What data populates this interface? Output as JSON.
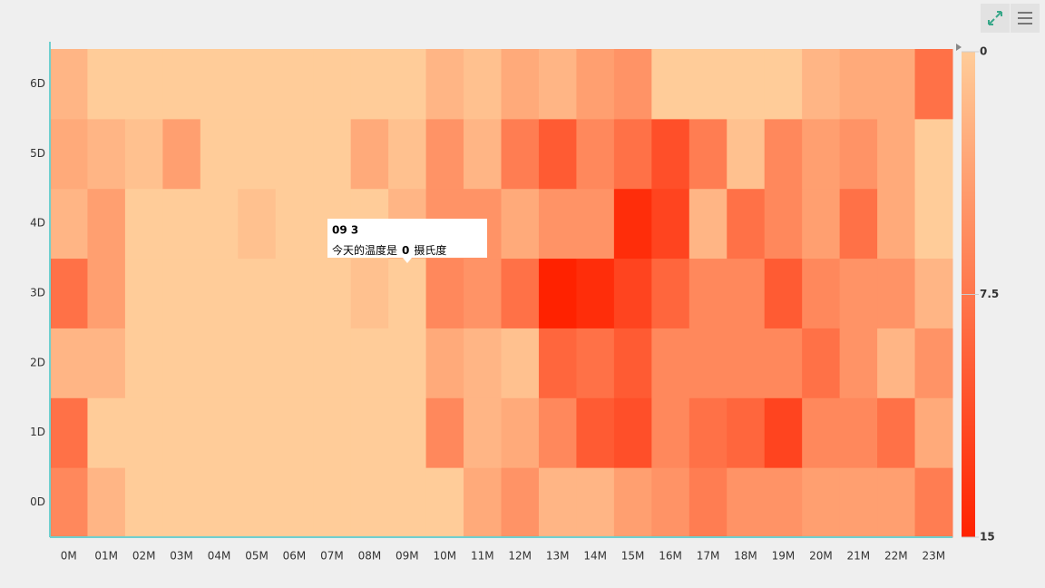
{
  "chart_data": {
    "type": "heatmap",
    "categories": [
      "0M",
      "01M",
      "02M",
      "03M",
      "04M",
      "05M",
      "06M",
      "07M",
      "08M",
      "09M",
      "10M",
      "11M",
      "12M",
      "13M",
      "14M",
      "15M",
      "16M",
      "17M",
      "18M",
      "19M",
      "20M",
      "21M",
      "22M",
      "23M"
    ],
    "y_categories": [
      "0D",
      "1D",
      "2D",
      "3D",
      "4D",
      "5D",
      "6D"
    ],
    "values": [
      [
        6,
        2,
        0,
        0,
        0,
        0,
        0,
        0,
        0,
        0,
        0,
        3,
        5,
        2,
        2,
        4,
        5,
        7,
        5,
        5,
        4,
        4,
        4,
        7
      ],
      [
        8,
        0,
        0,
        0,
        0,
        0,
        0,
        0,
        0,
        0,
        6,
        2,
        3,
        6,
        10,
        11,
        6,
        8,
        9,
        12,
        6,
        6,
        8,
        3
      ],
      [
        2,
        2,
        0,
        0,
        0,
        0,
        0,
        0,
        0,
        0,
        3,
        2,
        1,
        9,
        8,
        10,
        6,
        6,
        6,
        6,
        8,
        5,
        2,
        5
      ],
      [
        8,
        4,
        0,
        0,
        0,
        0,
        0,
        0,
        1,
        0,
        6,
        5,
        8,
        15,
        14,
        12,
        9,
        6,
        6,
        10,
        6,
        5,
        5,
        2
      ],
      [
        2,
        4,
        0,
        0,
        0,
        1,
        0,
        0,
        0,
        2,
        5,
        5,
        3,
        5,
        5,
        14,
        12,
        2,
        8,
        6,
        4,
        8,
        3,
        0
      ],
      [
        3,
        2,
        1,
        4,
        0,
        0,
        0,
        0,
        3,
        1,
        5,
        2,
        7,
        10,
        6,
        8,
        11,
        7,
        1,
        6,
        4,
        5,
        3,
        0
      ],
      [
        2,
        0,
        0,
        0,
        0,
        0,
        0,
        0,
        0,
        0,
        2,
        1,
        3,
        2,
        4,
        5,
        0,
        0,
        0,
        0,
        2,
        3,
        3,
        8
      ]
    ],
    "colors": [
      "#ffcc99",
      "#ff2200"
    ],
    "visual_map": {
      "range": [
        0,
        15
      ],
      "ticks": [
        0,
        7.5,
        15
      ]
    },
    "tooltip": {
      "title": "09 3",
      "text": "今天的温度是",
      "value": 0,
      "unit": "摄氏度"
    }
  }
}
